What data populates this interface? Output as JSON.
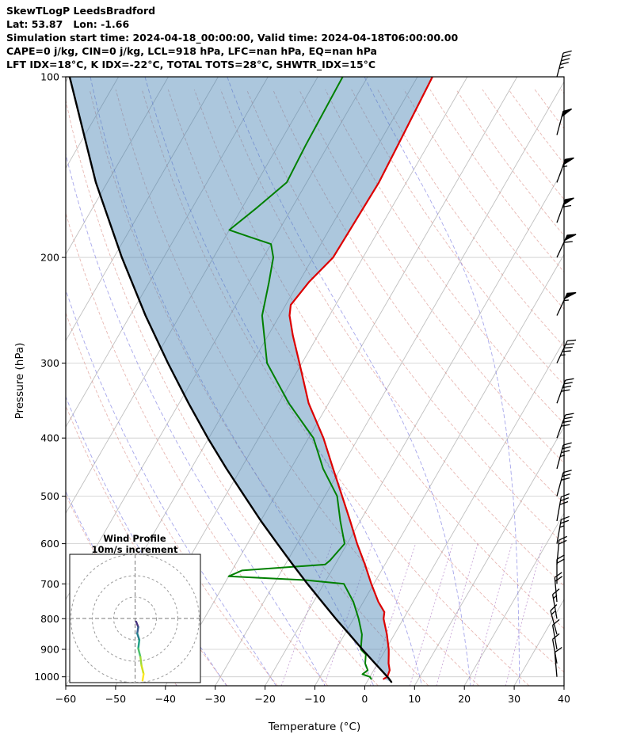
{
  "header": {
    "title": "SkewTLogP LeedsBradford",
    "coords": "Lat: 53.87   Lon: -1.66",
    "times": "Simulation start time: 2024-04-18_00:00:00, Valid time: 2024-04-18T06:00:00.00",
    "indices1": "CAPE=0 j/kg, CIN=0 j/kg, LCL=918 hPa, LFC=nan hPa, EQ=nan hPa",
    "indices2": "LFT IDX=18°C, K IDX=-22°C, TOTAL TOTS=28°C, SHWTR_IDX=15°C"
  },
  "chart_data": {
    "type": "skewt-logp",
    "title": "SkewTLogP LeedsBradford",
    "station": {
      "name": "LeedsBradford",
      "lat": 53.87,
      "lon": -1.66
    },
    "sim_start": "2024-04-18_00:00:00",
    "valid_time": "2024-04-18T06:00:00.00",
    "indices": {
      "cape_jkg": 0,
      "cin_jkg": 0,
      "lcl_hpa": 918,
      "lfc_hpa": "nan",
      "eq_hpa": "nan",
      "lifted_index_c": 18,
      "k_index_c": -22,
      "total_totals_c": 28,
      "showalter_index_c": 15
    },
    "xlabel": "Temperature (°C)",
    "ylabel": "Pressure (hPa)",
    "xlim": [
      -60,
      40
    ],
    "x_ticks": [
      -60,
      -50,
      -40,
      -30,
      -20,
      -10,
      0,
      10,
      20,
      30,
      40
    ],
    "p_lim": [
      100,
      1035
    ],
    "p_ticks": [
      100,
      200,
      300,
      400,
      500,
      600,
      700,
      800,
      900,
      1000
    ],
    "skew_rotation_deg": 30,
    "temperature_profile": {
      "color": "#dd0000",
      "points_p_t": [
        [
          1008,
          3.0
        ],
        [
          1000,
          3.5
        ],
        [
          975,
          3.2
        ],
        [
          950,
          2.2
        ],
        [
          918,
          1.2
        ],
        [
          900,
          0.6
        ],
        [
          850,
          -1.5
        ],
        [
          800,
          -4.0
        ],
        [
          780,
          -4.6
        ],
        [
          750,
          -7.0
        ],
        [
          700,
          -10.5
        ],
        [
          650,
          -14.0
        ],
        [
          600,
          -18.0
        ],
        [
          550,
          -22.0
        ],
        [
          500,
          -26.5
        ],
        [
          450,
          -31.5
        ],
        [
          400,
          -37.0
        ],
        [
          350,
          -44.0
        ],
        [
          300,
          -50.5
        ],
        [
          270,
          -55.0
        ],
        [
          250,
          -58.0
        ],
        [
          240,
          -59.0
        ],
        [
          220,
          -58.0
        ],
        [
          200,
          -56.0
        ],
        [
          180,
          -55.8
        ],
        [
          150,
          -55.5
        ],
        [
          130,
          -56.0
        ],
        [
          100,
          -57.0
        ]
      ]
    },
    "dewpoint_profile": {
      "color": "#008000",
      "points_p_t": [
        [
          1008,
          0.5
        ],
        [
          1000,
          0.0
        ],
        [
          990,
          -1.8
        ],
        [
          975,
          -1.2
        ],
        [
          950,
          -2.5
        ],
        [
          925,
          -3.2
        ],
        [
          918,
          -3.4
        ],
        [
          900,
          -5.0
        ],
        [
          850,
          -6.5
        ],
        [
          800,
          -9.0
        ],
        [
          750,
          -12.0
        ],
        [
          700,
          -16.0
        ],
        [
          690,
          -24.0
        ],
        [
          680,
          -40.0
        ],
        [
          665,
          -38.0
        ],
        [
          650,
          -22.0
        ],
        [
          640,
          -21.5
        ],
        [
          600,
          -20.5
        ],
        [
          550,
          -24.0
        ],
        [
          500,
          -27.5
        ],
        [
          450,
          -33.5
        ],
        [
          400,
          -39.0
        ],
        [
          350,
          -48.0
        ],
        [
          300,
          -57.0
        ],
        [
          250,
          -63.5
        ],
        [
          220,
          -66.0
        ],
        [
          200,
          -68.0
        ],
        [
          190,
          -70.0
        ],
        [
          185,
          -75.0
        ],
        [
          180,
          -80.0
        ],
        [
          165,
          -77.0
        ],
        [
          150,
          -74.0
        ],
        [
          130,
          -74.5
        ],
        [
          100,
          -75.0
        ]
      ]
    },
    "parcel_profile": {
      "color": "#000000",
      "points_p_t": [
        [
          1020,
          4.9
        ],
        [
          1005,
          3.9
        ],
        [
          1000,
          3.5
        ],
        [
          950,
          -0.5
        ],
        [
          900,
          -4.7
        ],
        [
          850,
          -9.0
        ],
        [
          800,
          -13.6
        ],
        [
          750,
          -18.3
        ],
        [
          700,
          -23.3
        ],
        [
          650,
          -28.5
        ],
        [
          600,
          -34.0
        ],
        [
          550,
          -39.9
        ],
        [
          500,
          -46.1
        ],
        [
          450,
          -52.9
        ],
        [
          400,
          -60.2
        ],
        [
          350,
          -68.1
        ],
        [
          300,
          -76.9
        ],
        [
          250,
          -86.9
        ],
        [
          200,
          -98.4
        ],
        [
          150,
          -112.3
        ],
        [
          100,
          -129.8
        ]
      ]
    },
    "shading": {
      "color": "#4682b4",
      "opacity": 0.45,
      "between": [
        "parcel_profile",
        "temperature_profile"
      ]
    },
    "background": {
      "pressure_gridlines": {
        "color": "#cccccc",
        "width": 0.8
      },
      "isotherms": {
        "min": -130,
        "max": 40,
        "step": 10,
        "color": "#bfbfbf",
        "width": 0.9
      },
      "dry_adiabats": {
        "theta_min": -40,
        "theta_max": 200,
        "step": 10,
        "color": "#d98880",
        "opacity": 0.6,
        "dash": "4 2.5"
      },
      "moist_adiabats": {
        "t_start_min": -40,
        "t_start_max": 120,
        "step": 10,
        "color": "#6a6ade",
        "opacity": 0.6,
        "dash": "5 3"
      },
      "mixing_ratio_lines": {
        "values_gkg": [
          1,
          2,
          4,
          7,
          10,
          16,
          24
        ],
        "p_top": 600,
        "color": "#9b59b6",
        "opacity": 0.55,
        "dash": "2 2.5"
      }
    },
    "wind_barbs": {
      "color": "#000000",
      "units": "kt",
      "levels": [
        {
          "p": 100,
          "speed": 45,
          "dir": 15
        },
        {
          "p": 125,
          "speed": 50,
          "dir": 15
        },
        {
          "p": 150,
          "speed": 55,
          "dir": 20
        },
        {
          "p": 175,
          "speed": 60,
          "dir": 20
        },
        {
          "p": 200,
          "speed": 58,
          "dir": 25
        },
        {
          "p": 250,
          "speed": 55,
          "dir": 25
        },
        {
          "p": 300,
          "speed": 45,
          "dir": 25
        },
        {
          "p": 350,
          "speed": 42,
          "dir": 20
        },
        {
          "p": 400,
          "speed": 38,
          "dir": 20
        },
        {
          "p": 450,
          "speed": 35,
          "dir": 15
        },
        {
          "p": 500,
          "speed": 30,
          "dir": 15
        },
        {
          "p": 550,
          "speed": 28,
          "dir": 10
        },
        {
          "p": 600,
          "speed": 25,
          "dir": 10
        },
        {
          "p": 650,
          "speed": 22,
          "dir": 5
        },
        {
          "p": 700,
          "speed": 20,
          "dir": 0
        },
        {
          "p": 750,
          "speed": 18,
          "dir": 355
        },
        {
          "p": 800,
          "speed": 15,
          "dir": 350
        },
        {
          "p": 850,
          "speed": 15,
          "dir": 345
        },
        {
          "p": 900,
          "speed": 12,
          "dir": 350
        },
        {
          "p": 950,
          "speed": 10,
          "dir": 350
        },
        {
          "p": 1000,
          "speed": 8,
          "dir": 355
        }
      ]
    },
    "hodograph": {
      "title": "Wind Profile",
      "subtitle": "10m/s increment",
      "ring_increment_ms": 10,
      "rings_ms": [
        10,
        20,
        30
      ],
      "trace_u_v_color": [
        [
          0.5,
          -1.5,
          "#440154"
        ],
        [
          1.5,
          -4.0,
          "#46327e"
        ],
        [
          1.0,
          -7.0,
          "#365c8d"
        ],
        [
          2.0,
          -10.0,
          "#277f8e"
        ],
        [
          1.5,
          -14.0,
          "#1fa187"
        ],
        [
          2.5,
          -18.0,
          "#4ac16d"
        ],
        [
          3.0,
          -22.0,
          "#a0da39"
        ],
        [
          4.0,
          -26.0,
          "#d0e11c"
        ],
        [
          3.5,
          -29.0,
          "#fde725"
        ]
      ]
    }
  }
}
